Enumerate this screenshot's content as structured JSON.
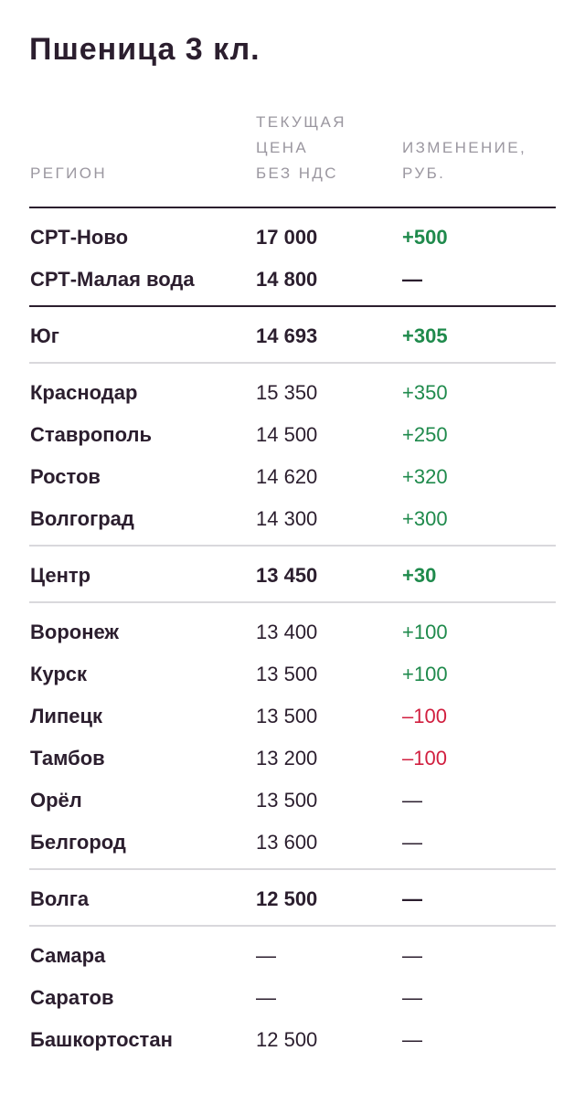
{
  "title": "Пшеница 3 кл.",
  "headers": {
    "region": "РЕГИОН",
    "price": [
      "ТЕКУЩАЯ",
      "ЦЕНА",
      "БЕЗ НДС"
    ],
    "change": [
      "ИЗМЕНЕНИЕ,",
      "РУБ."
    ]
  },
  "colors": {
    "positive": "#1f8a4c",
    "negative": "#d11f3f",
    "text": "#2b1e2e",
    "muted": "#9b97a0"
  },
  "rows": [
    {
      "region": "СРТ-Ново",
      "price": "17 000",
      "change": "+500",
      "trend": "pos",
      "bold": true
    },
    {
      "region": "СРТ-Малая вода",
      "price": "14 800",
      "change": "—",
      "trend": "neu",
      "bold": true
    },
    {
      "region": "Юг",
      "price": "14 693",
      "change": "+305",
      "trend": "pos",
      "bold": true
    },
    {
      "region": "Краснодар",
      "price": "15 350",
      "change": "+350",
      "trend": "pos",
      "bold": false
    },
    {
      "region": "Ставрополь",
      "price": "14 500",
      "change": "+250",
      "trend": "pos",
      "bold": false
    },
    {
      "region": "Ростов",
      "price": "14 620",
      "change": "+320",
      "trend": "pos",
      "bold": false
    },
    {
      "region": "Волгоград",
      "price": "14 300",
      "change": "+300",
      "trend": "pos",
      "bold": false
    },
    {
      "region": "Центр",
      "price": "13 450",
      "change": "+30",
      "trend": "pos",
      "bold": true
    },
    {
      "region": "Воронеж",
      "price": "13 400",
      "change": "+100",
      "trend": "pos",
      "bold": false
    },
    {
      "region": "Курск",
      "price": "13 500",
      "change": "+100",
      "trend": "pos",
      "bold": false
    },
    {
      "region": "Липецк",
      "price": "13 500",
      "change": "–100",
      "trend": "neg",
      "bold": false
    },
    {
      "region": "Тамбов",
      "price": "13 200",
      "change": "–100",
      "trend": "neg",
      "bold": false
    },
    {
      "region": "Орёл",
      "price": "13 500",
      "change": "—",
      "trend": "neu",
      "bold": false
    },
    {
      "region": "Белгород",
      "price": "13 600",
      "change": "—",
      "trend": "neu",
      "bold": false
    },
    {
      "region": "Волга",
      "price": "12 500",
      "change": "—",
      "trend": "neu",
      "bold": true
    },
    {
      "region": "Самара",
      "price": "—",
      "change": "—",
      "trend": "neu",
      "bold": false
    },
    {
      "region": "Саратов",
      "price": "—",
      "change": "—",
      "trend": "neu",
      "bold": false
    },
    {
      "region": "Башкортостан",
      "price": "12 500",
      "change": "—",
      "trend": "neu",
      "bold": false
    }
  ]
}
